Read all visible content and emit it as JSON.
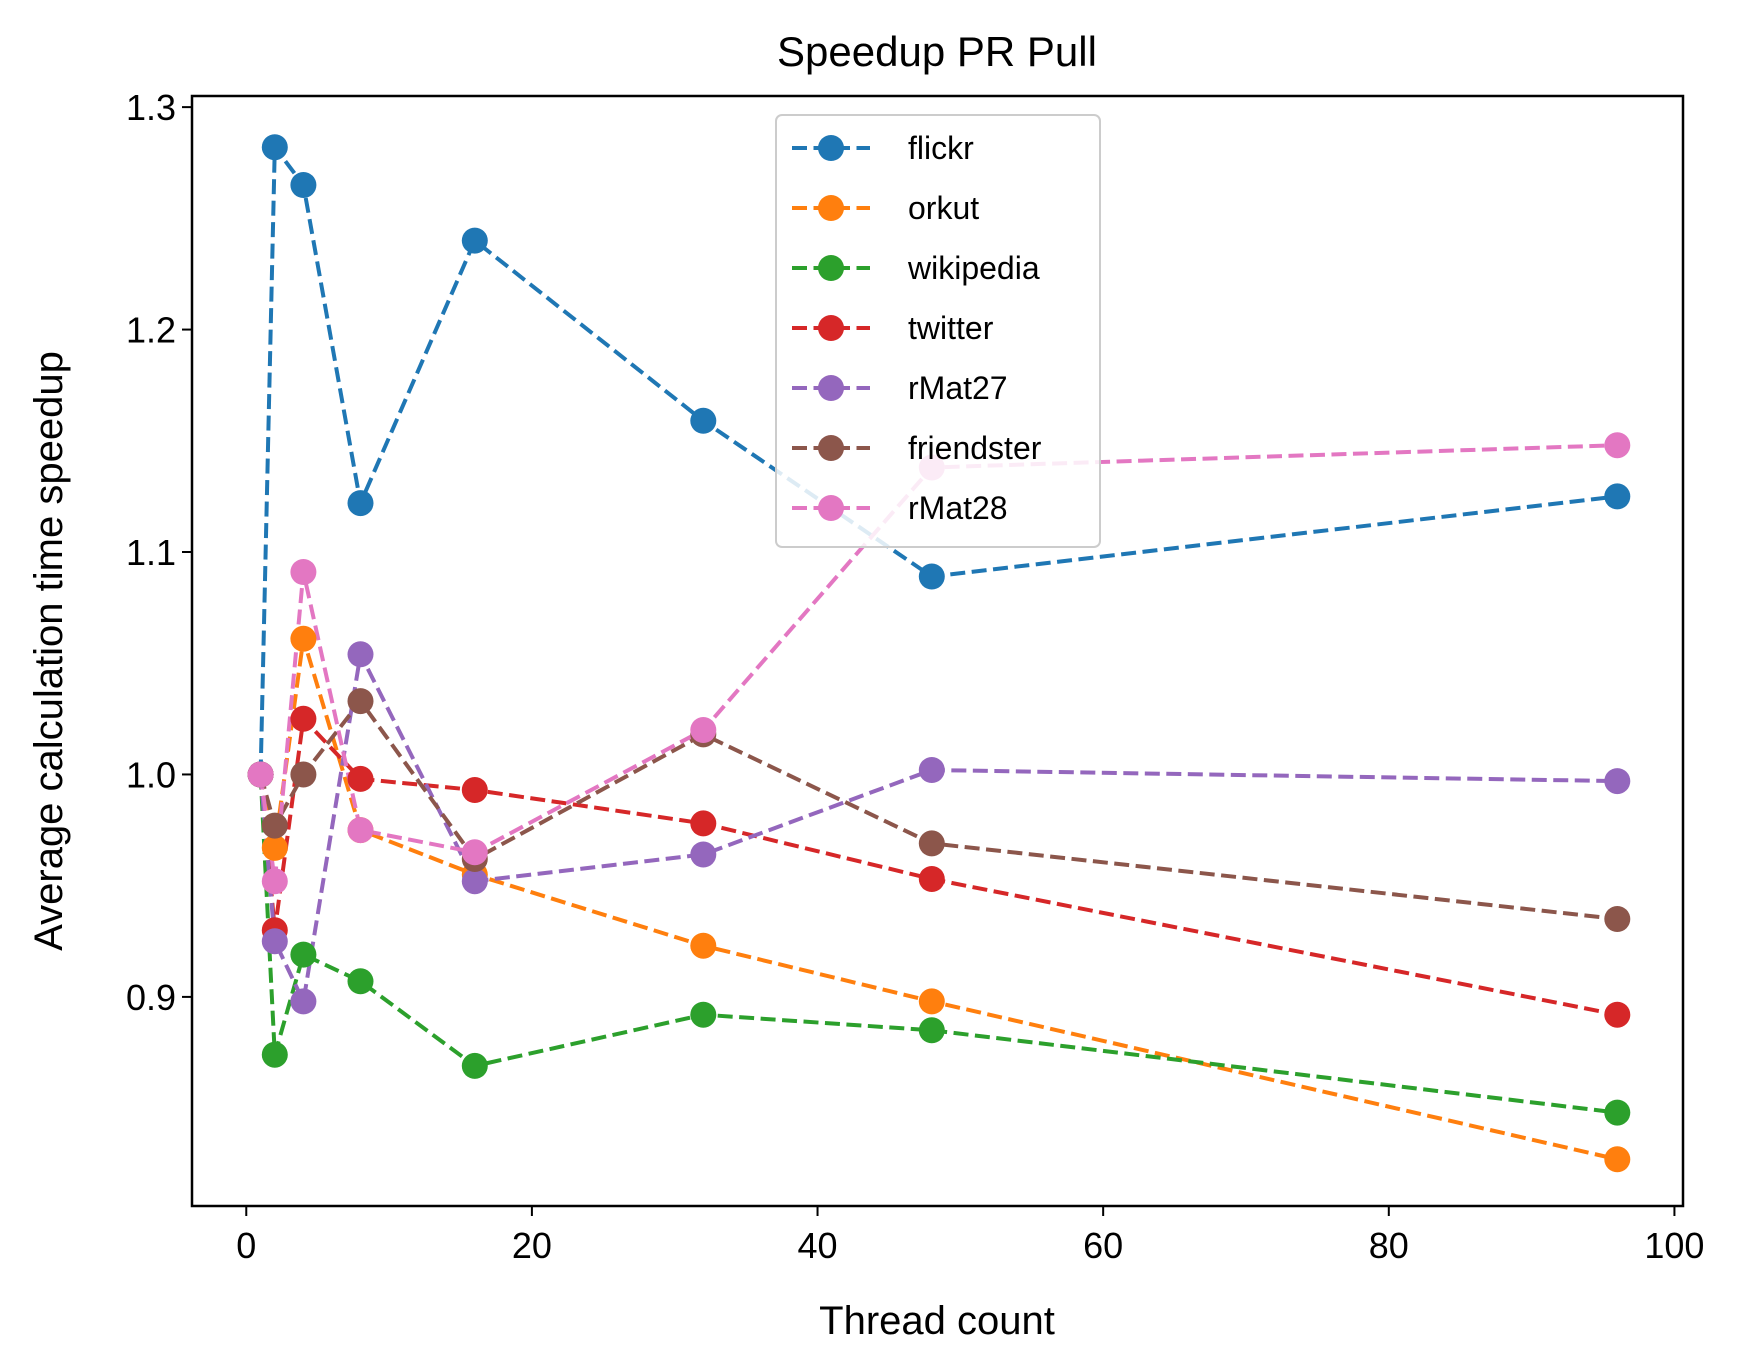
{
  "chart_data": {
    "type": "line",
    "title": "Speedup PR Pull",
    "xlabel": "Thread count",
    "ylabel": "Average calculation time speedup",
    "xlim": [
      -3.8,
      100.6
    ],
    "ylim": [
      0.806,
      1.305
    ],
    "xticks": [
      0,
      20,
      40,
      60,
      80,
      100
    ],
    "yticks": [
      0.9,
      1.0,
      1.1,
      1.2,
      1.3
    ],
    "xtick_labels": [
      "0",
      "20",
      "40",
      "60",
      "80",
      "100"
    ],
    "ytick_labels": [
      "0.9",
      "1.0",
      "1.1",
      "1.2",
      "1.3"
    ],
    "grid": false,
    "legend_position": "top-center",
    "line_style": "dashed",
    "marker": "circle",
    "x": [
      1,
      2,
      4,
      8,
      16,
      32,
      48,
      96
    ],
    "series": [
      {
        "name": "flickr",
        "color": "#1f77b4",
        "values": [
          1.0,
          1.282,
          1.265,
          1.122,
          1.24,
          1.159,
          1.089,
          1.125
        ]
      },
      {
        "name": "orkut",
        "color": "#ff7f0e",
        "values": [
          1.0,
          0.967,
          1.061,
          0.975,
          0.955,
          0.923,
          0.898,
          0.827
        ]
      },
      {
        "name": "wikipedia",
        "color": "#2ca02c",
        "values": [
          1.0,
          0.874,
          0.919,
          0.907,
          0.869,
          0.892,
          0.885,
          0.848
        ]
      },
      {
        "name": "twitter",
        "color": "#d62728",
        "values": [
          1.0,
          0.93,
          1.025,
          0.998,
          0.993,
          0.978,
          0.953,
          0.892
        ]
      },
      {
        "name": "rMat27",
        "color": "#9467bd",
        "values": [
          1.0,
          0.925,
          0.898,
          1.054,
          0.952,
          0.964,
          1.002,
          0.997
        ]
      },
      {
        "name": "friendster",
        "color": "#8c564b",
        "values": [
          1.0,
          0.977,
          1.0,
          1.033,
          0.962,
          1.018,
          0.969,
          0.935
        ]
      },
      {
        "name": "rMat28",
        "color": "#e377c2",
        "values": [
          1.0,
          0.952,
          1.091,
          0.975,
          0.965,
          1.02,
          1.138,
          1.148
        ]
      }
    ]
  }
}
